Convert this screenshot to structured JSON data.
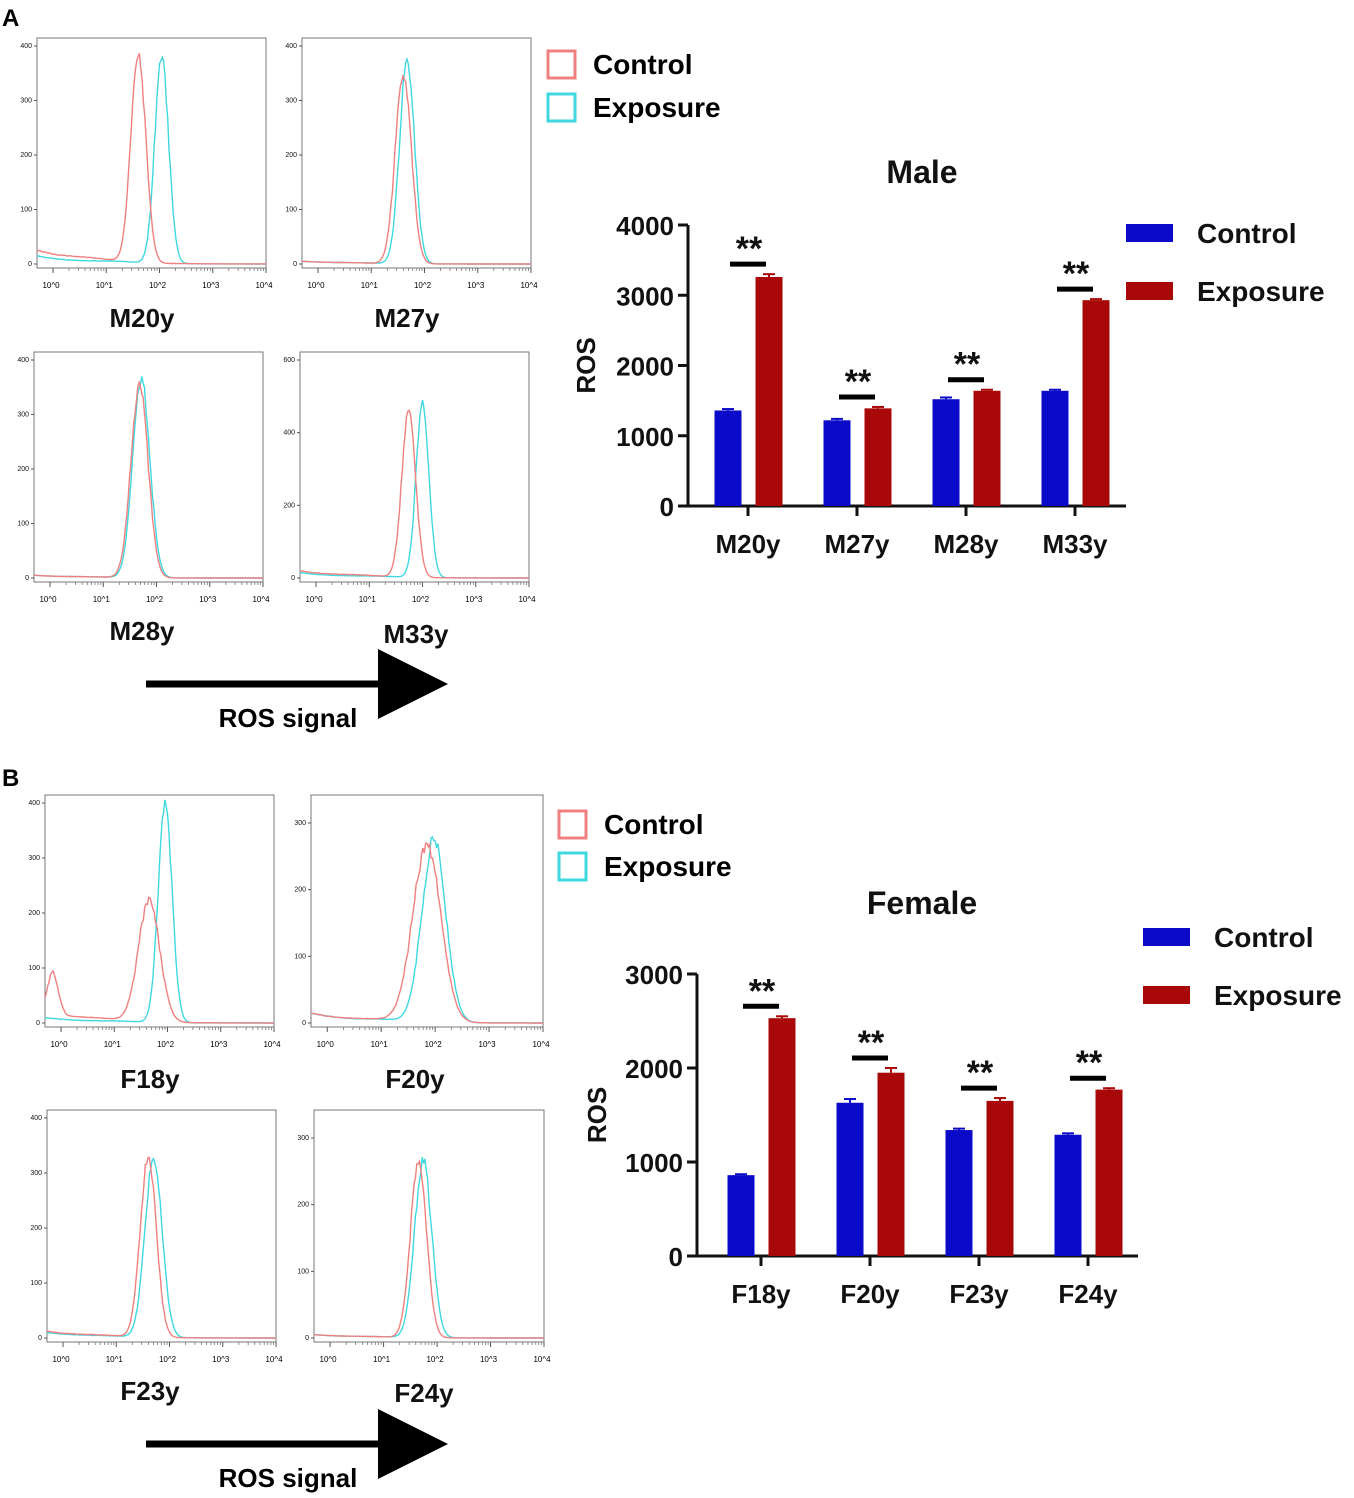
{
  "colors": {
    "control_hist": "#f08080",
    "exposure_hist": "#3fd8e0",
    "control_bar": "#0a0ac8",
    "exposure_bar": "#a80808",
    "axis": "#111111"
  },
  "panels": [
    {
      "letter": "A",
      "legend": {
        "control": "Control",
        "exposure": "Exposure"
      },
      "arrow_label": "ROS signal"
    },
    {
      "letter": "B",
      "legend": {
        "control": "Control",
        "exposure": "Exposure"
      },
      "arrow_label": "ROS signal"
    }
  ],
  "chart_data": [
    {
      "type": "line",
      "panel": "A",
      "label": "M20y",
      "x_scale": "log",
      "xlim": [
        0.5,
        10000
      ],
      "ylim": [
        0,
        400
      ],
      "x_ticks": [
        "10^0",
        "10^1",
        "10^2",
        "10^3",
        "10^4"
      ],
      "y_ticks": [
        "0",
        "100",
        "200",
        "300",
        "400"
      ],
      "series": [
        {
          "name": "Control",
          "peak_x": 40,
          "peak_y": 380,
          "width": 0.14,
          "baseline": 25
        },
        {
          "name": "Exposure",
          "peak_x": 110,
          "peak_y": 378,
          "width": 0.13,
          "baseline": 15
        }
      ]
    },
    {
      "type": "line",
      "panel": "A",
      "label": "M27y",
      "x_scale": "log",
      "xlim": [
        0.5,
        10000
      ],
      "ylim": [
        0,
        400
      ],
      "x_ticks": [
        "10^0",
        "10^1",
        "10^2",
        "10^3",
        "10^4"
      ],
      "y_ticks": [
        "0",
        "100",
        "200",
        "300",
        "400"
      ],
      "series": [
        {
          "name": "Control",
          "peak_x": 40,
          "peak_y": 350,
          "width": 0.15,
          "baseline": 5
        },
        {
          "name": "Exposure",
          "peak_x": 47,
          "peak_y": 372,
          "width": 0.14,
          "baseline": 5
        }
      ]
    },
    {
      "type": "line",
      "panel": "A",
      "label": "M28y",
      "x_scale": "log",
      "xlim": [
        0.5,
        10000
      ],
      "ylim": [
        0,
        400
      ],
      "x_ticks": [
        "10^0",
        "10^1",
        "10^2",
        "10^3",
        "10^4"
      ],
      "y_ticks": [
        "0",
        "100",
        "200",
        "300",
        "400"
      ],
      "series": [
        {
          "name": "Control",
          "peak_x": 48,
          "peak_y": 355,
          "width": 0.16,
          "baseline": 5
        },
        {
          "name": "Exposure",
          "peak_x": 52,
          "peak_y": 365,
          "width": 0.16,
          "baseline": 5
        }
      ]
    },
    {
      "type": "line",
      "panel": "A",
      "label": "M33y",
      "x_scale": "log",
      "xlim": [
        0.5,
        10000
      ],
      "ylim": [
        0,
        600
      ],
      "x_ticks": [
        "10^0",
        "10^1",
        "10^2",
        "10^3",
        "10^4"
      ],
      "y_ticks": [
        "0",
        "200",
        "400",
        "600"
      ],
      "series": [
        {
          "name": "Control",
          "peak_x": 55,
          "peak_y": 455,
          "width": 0.13,
          "baseline": 20
        },
        {
          "name": "Exposure",
          "peak_x": 100,
          "peak_y": 480,
          "width": 0.12,
          "baseline": 15
        }
      ]
    },
    {
      "type": "line",
      "panel": "B",
      "label": "F18y",
      "x_scale": "log",
      "xlim": [
        0.5,
        10000
      ],
      "ylim": [
        0,
        400
      ],
      "x_ticks": [
        "10^0",
        "10^1",
        "10^2",
        "10^3",
        "10^4"
      ],
      "y_ticks": [
        "0",
        "100",
        "200",
        "300",
        "400"
      ],
      "series": [
        {
          "name": "Control",
          "peak_x": 45,
          "peak_y": 220,
          "width": 0.2,
          "baseline": 20,
          "low_bump": 75
        },
        {
          "name": "Exposure",
          "peak_x": 90,
          "peak_y": 400,
          "width": 0.13,
          "baseline": 10
        }
      ]
    },
    {
      "type": "line",
      "panel": "B",
      "label": "F20y",
      "x_scale": "log",
      "xlim": [
        0.5,
        10000
      ],
      "ylim": [
        0,
        330
      ],
      "x_ticks": [
        "10^0",
        "10^1",
        "10^2",
        "10^3",
        "10^4"
      ],
      "y_ticks": [
        "0",
        "100",
        "200",
        "300"
      ],
      "series": [
        {
          "name": "Control",
          "peak_x": 70,
          "peak_y": 265,
          "width": 0.26,
          "baseline": 15
        },
        {
          "name": "Exposure",
          "peak_x": 95,
          "peak_y": 275,
          "width": 0.22,
          "baseline": 15
        }
      ]
    },
    {
      "type": "line",
      "panel": "B",
      "label": "F23y",
      "x_scale": "log",
      "xlim": [
        0.5,
        10000
      ],
      "ylim": [
        0,
        400
      ],
      "x_ticks": [
        "10^0",
        "10^1",
        "10^2",
        "10^3",
        "10^4"
      ],
      "y_ticks": [
        "0",
        "100",
        "200",
        "300",
        "400"
      ],
      "series": [
        {
          "name": "Control",
          "peak_x": 40,
          "peak_y": 330,
          "width": 0.15,
          "baseline": 12
        },
        {
          "name": "Exposure",
          "peak_x": 50,
          "peak_y": 325,
          "width": 0.16,
          "baseline": 10
        }
      ]
    },
    {
      "type": "line",
      "panel": "B",
      "label": "F24y",
      "x_scale": "log",
      "xlim": [
        0.5,
        10000
      ],
      "ylim": [
        0,
        330
      ],
      "x_ticks": [
        "10^0",
        "10^1",
        "10^2",
        "10^3",
        "10^4"
      ],
      "y_ticks": [
        "0",
        "100",
        "200",
        "300"
      ],
      "series": [
        {
          "name": "Control",
          "peak_x": 45,
          "peak_y": 265,
          "width": 0.15,
          "baseline": 5
        },
        {
          "name": "Exposure",
          "peak_x": 55,
          "peak_y": 265,
          "width": 0.16,
          "baseline": 5
        }
      ]
    },
    {
      "type": "bar",
      "panel": "A",
      "title": "Male",
      "ylabel": "ROS",
      "ylim": [
        0,
        4000
      ],
      "y_ticks": [
        "0",
        "1000",
        "2000",
        "3000",
        "4000"
      ],
      "categories": [
        "M20y",
        "M27y",
        "M28y",
        "M33y"
      ],
      "series": [
        {
          "name": "Control",
          "values": [
            1360,
            1220,
            1520,
            1640
          ],
          "errors": [
            20,
            20,
            25,
            15
          ]
        },
        {
          "name": "Exposure",
          "values": [
            3260,
            1390,
            1640,
            2930
          ],
          "errors": [
            40,
            20,
            15,
            15
          ]
        }
      ],
      "significance": [
        "**",
        "**",
        "**",
        "**"
      ],
      "legend_position": "top-right"
    },
    {
      "type": "bar",
      "panel": "B",
      "title": "Female",
      "ylabel": "ROS",
      "ylim": [
        0,
        3000
      ],
      "y_ticks": [
        "0",
        "1000",
        "2000",
        "3000"
      ],
      "categories": [
        "F18y",
        "F20y",
        "F23y",
        "F24y"
      ],
      "series": [
        {
          "name": "Control",
          "values": [
            860,
            1630,
            1340,
            1290
          ],
          "errors": [
            10,
            40,
            15,
            15
          ]
        },
        {
          "name": "Exposure",
          "values": [
            2530,
            1950,
            1650,
            1770
          ],
          "errors": [
            20,
            50,
            30,
            15
          ]
        }
      ],
      "significance": [
        "**",
        "**",
        "**",
        "**"
      ],
      "legend_position": "top-right"
    }
  ]
}
